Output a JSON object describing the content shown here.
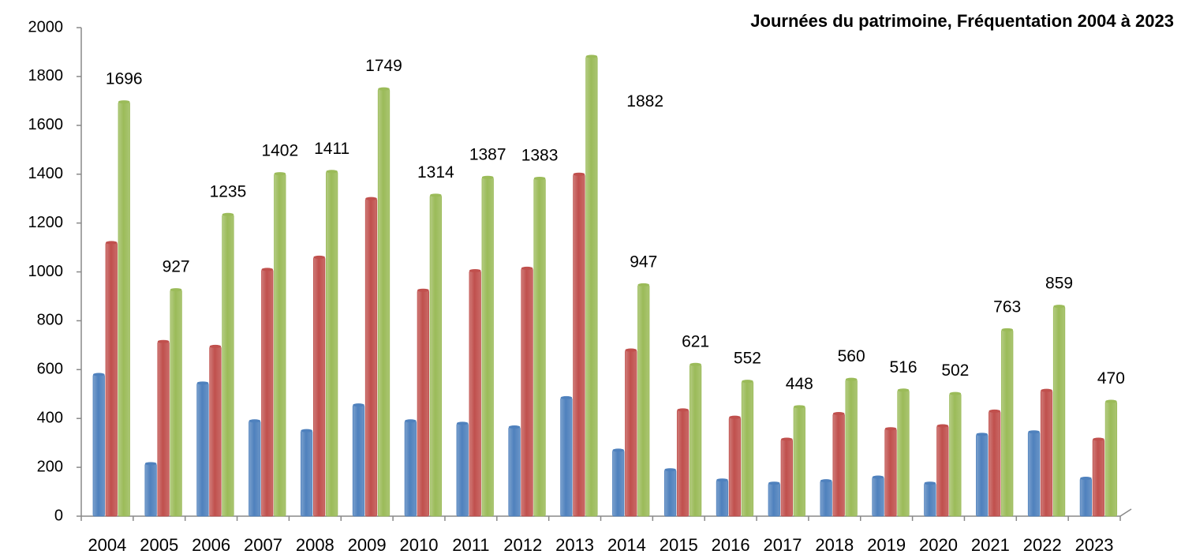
{
  "chart_data": {
    "type": "bar",
    "title": "Journées du patrimoine, Fréquentation 2004 à 2023",
    "categories": [
      "2004",
      "2005",
      "2006",
      "2007",
      "2008",
      "2009",
      "2010",
      "2011",
      "2012",
      "2013",
      "2014",
      "2015",
      "2016",
      "2017",
      "2018",
      "2019",
      "2020",
      "2021",
      "2022",
      "2023"
    ],
    "series": [
      {
        "color": "#4f81bd",
        "values": [
          580,
          215,
          545,
          390,
          350,
          455,
          390,
          380,
          365,
          485,
          270,
          190,
          148,
          135,
          145,
          160,
          135,
          335,
          345,
          155
        ]
      },
      {
        "color": "#c0504d",
        "values": [
          1120,
          715,
          695,
          1010,
          1060,
          1300,
          925,
          1005,
          1015,
          1400,
          680,
          435,
          405,
          315,
          420,
          358,
          370,
          430,
          515,
          315
        ]
      },
      {
        "color": "#9bbb59",
        "values": [
          1696,
          927,
          1235,
          1402,
          1411,
          1749,
          1314,
          1387,
          1383,
          1882,
          947,
          621,
          552,
          448,
          560,
          516,
          502,
          763,
          859,
          470
        ],
        "labeled": true
      }
    ],
    "ylim": [
      0,
      2000
    ],
    "yticks": [
      0,
      200,
      400,
      600,
      800,
      1000,
      1200,
      1400,
      1600,
      1800,
      2000
    ],
    "grid": false
  }
}
